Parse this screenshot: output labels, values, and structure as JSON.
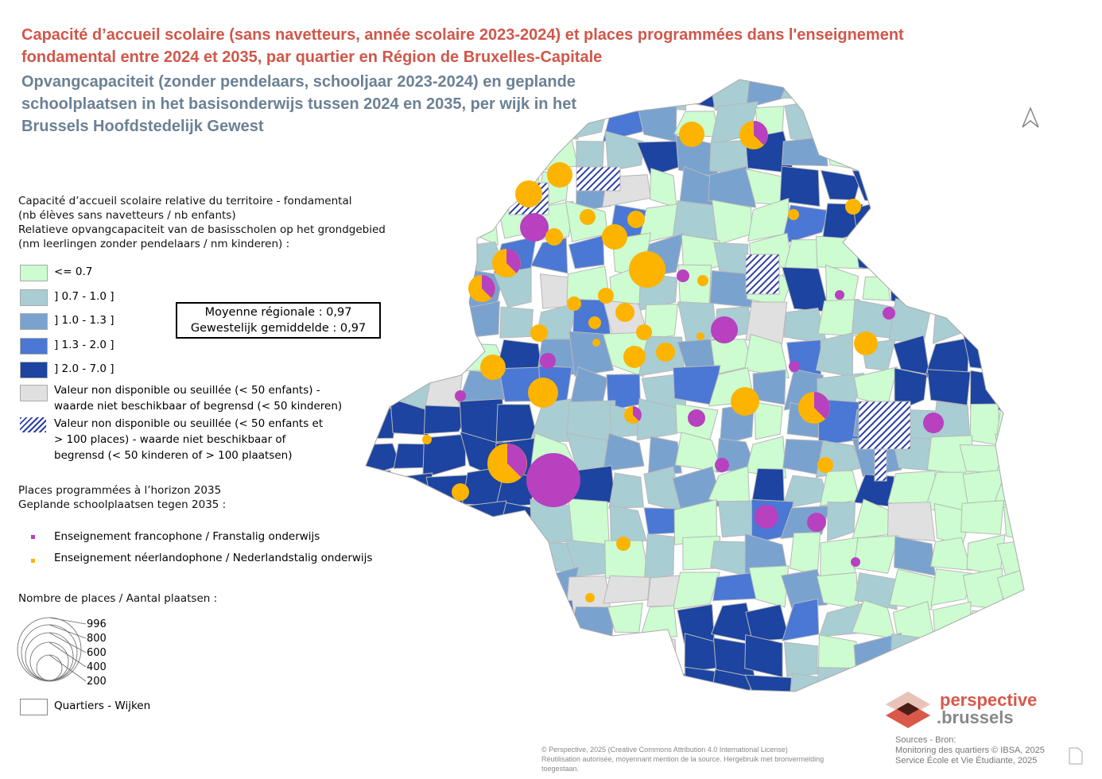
{
  "title_fr": "Capacité d’accueil scolaire (sans navetteurs, année scolaire 2023-2024) et places programmées dans l'enseignement fondamental entre 2024 et 2035, par quartier en Région de Bruxelles-Capitale",
  "title_nl": "Opvangcapaciteit (zonder pendelaars, schooljaar 2023-2024) en geplande schoolplaatsen in het basisonderwijs tussen 2024 en 2035, per wijk in het Brussels Hoofdstedelijk Gewest",
  "legend": {
    "capacity_title": [
      "Capacité d’accueil scolaire relative du territoire - fondamental",
      "(nb élèves sans navetteurs / nb enfants)",
      "Relatieve opvangcapaciteit van de basisscholen op het grondgebied",
      "(nm leerlingen zonder pendelaars / nm kinderen) :"
    ],
    "classes": [
      {
        "label": "<= 0.7",
        "color": "#ccfcd0"
      },
      {
        "label": "] 0.7 - 1.0 ]",
        "color": "#a8cdd3"
      },
      {
        "label": "] 1.0 - 1.3 ]",
        "color": "#7aa2cf"
      },
      {
        "label": "] 1.3 - 2.0 ]",
        "color": "#4a78d4"
      },
      {
        "label": "] 2.0 - 7.0 ]",
        "color": "#1c44a0"
      }
    ],
    "na": "Valeur non disponible ou seuillée (< 50 enfants) - waarde niet beschikbaar of begrensd (< 50 kinderen)",
    "na_color": "#e0e0e0",
    "na_hatched": "Valeur non disponible ou seuillée (< 50 enfants et > 100 places) - waarde niet beschikbaar of begrensd (< 50 kinderen of > 100 plaatsen)",
    "places_title": [
      "Places programmées à l’horizon 2035",
      "Geplande schoolplaatsen tegen 2035 :"
    ],
    "fr": "Enseignement francophone / Franstalig onderwijs",
    "fr_color": "#b741bf",
    "nl": "Enseignement néerlandophone / Nederlandstalig onderwijs",
    "nl_color": "#fcb400",
    "size_title": "Nombre de places / Aantal plaatsen :",
    "sizes": [
      "996",
      "800",
      "600",
      "400",
      "200"
    ],
    "quartiers": "Quartiers - Wijken"
  },
  "average": {
    "fr": "Moyenne régionale : 0,97",
    "nl": "Gewestelijk gemiddelde : 0,97"
  },
  "logo": {
    "line1": "perspective",
    "line2": ".brussels"
  },
  "footer": {
    "license": "© Perspective, 2025 (Creative Commons Attribution 4.0 International License)",
    "reuse": "Réutilisation autorisée, moyennant mention de la source. Hergebruik met bronvermelding toegestaan."
  },
  "sources": {
    "title": "Sources - Bron:",
    "s1": "Monitoring des quartiers © IBSA, 2025",
    "s2": "Service École et Vie Étudiante, 2025"
  }
}
